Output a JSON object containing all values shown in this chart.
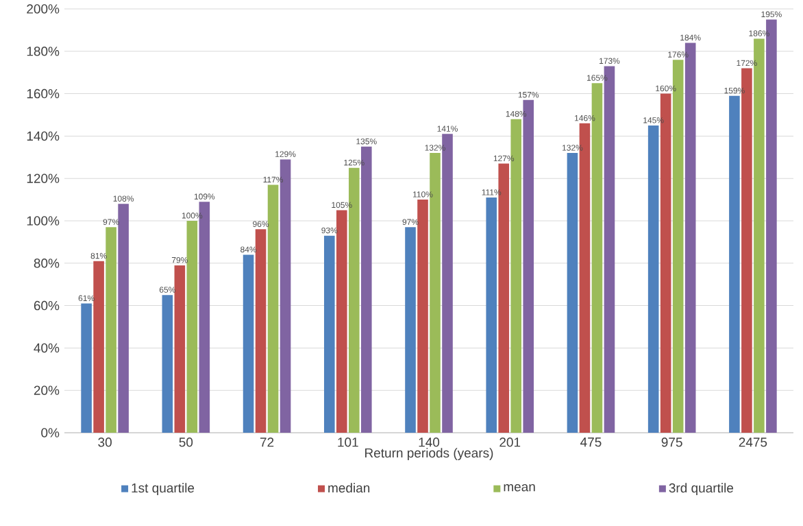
{
  "chart_data": {
    "type": "bar",
    "xlabel": "Return periods (years)",
    "categories": [
      "30",
      "50",
      "72",
      "101",
      "140",
      "201",
      "475",
      "975",
      "2475"
    ],
    "series": [
      {
        "name": "1st quartile",
        "color": "#4f81bd",
        "values": [
          61,
          65,
          84,
          93,
          97,
          111,
          132,
          145,
          159
        ],
        "value_labels": [
          "61%",
          "65%",
          "84%",
          "93%",
          "97%",
          "111%",
          "132%",
          "145%",
          "159%"
        ]
      },
      {
        "name": "median",
        "color": "#c0504d",
        "values": [
          81,
          79,
          96,
          105,
          110,
          127,
          146,
          160,
          172
        ],
        "value_labels": [
          "81%",
          "79%",
          "96%",
          "105%",
          "110%",
          "127%",
          "146%",
          "160%",
          "172%"
        ]
      },
      {
        "name": "mean",
        "color": "#9bbb59",
        "values": [
          97,
          100,
          117,
          125,
          132,
          148,
          165,
          176,
          186
        ],
        "value_labels": [
          "97%",
          "100%",
          "117%",
          "125%",
          "132%",
          "148%",
          "165%",
          "176%",
          "186%"
        ]
      },
      {
        "name": "3rd quartile",
        "color": "#8064a2",
        "values": [
          108,
          109,
          129,
          135,
          141,
          157,
          173,
          184,
          195
        ],
        "value_labels": [
          "108%",
          "109%",
          "129%",
          "135%",
          "141%",
          "157%",
          "173%",
          "184%",
          "195%"
        ]
      }
    ],
    "ylim": [
      0,
      200
    ],
    "yticks": [
      {
        "value": 0,
        "label": "0%"
      },
      {
        "value": 20,
        "label": "20%"
      },
      {
        "value": 40,
        "label": "40%"
      },
      {
        "value": 60,
        "label": "60%"
      },
      {
        "value": 80,
        "label": "80%"
      },
      {
        "value": 100,
        "label": "100%"
      },
      {
        "value": 120,
        "label": "120%"
      },
      {
        "value": 140,
        "label": "140%"
      },
      {
        "value": 160,
        "label": "160%"
      },
      {
        "value": 180,
        "label": "180%"
      },
      {
        "value": 200,
        "label": "200%"
      }
    ],
    "grid": "y",
    "legend": "bottom"
  }
}
